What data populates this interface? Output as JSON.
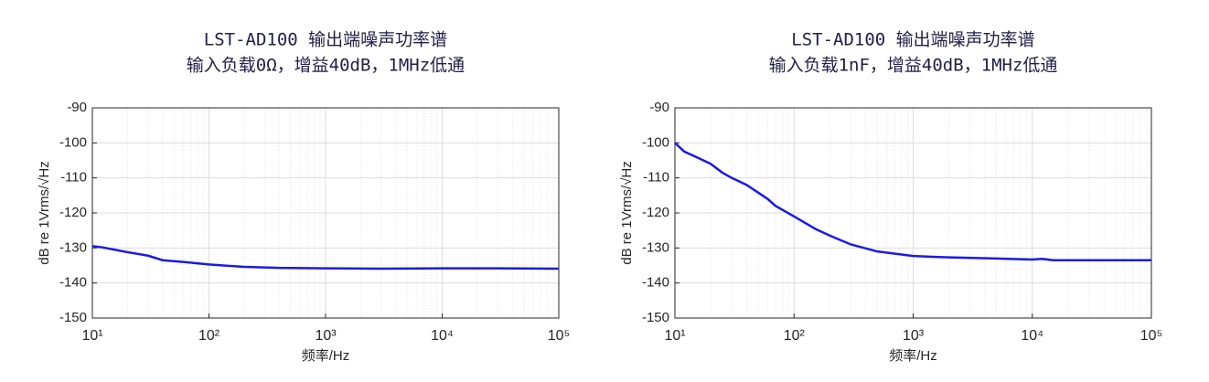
{
  "chart_data": [
    {
      "type": "line",
      "title": "LST-AD100 输出端噪声功率谱",
      "subtitle": "输入负载0Ω，增益40dB，1MHz低通",
      "xlabel": "频率/Hz",
      "ylabel": "dB re 1Vrms/√Hz",
      "xscale": "log",
      "grid": true,
      "minor_grid": true,
      "color": "#1a1ae6",
      "x": [
        10,
        12,
        15,
        20,
        30,
        40,
        60,
        100,
        200,
        400,
        1000,
        3000,
        10000,
        30000,
        100000
      ],
      "values": [
        -129.5,
        -129.8,
        -130.4,
        -131.2,
        -132.2,
        -133.5,
        -134,
        -134.7,
        -135.4,
        -135.7,
        -135.8,
        -135.9,
        -135.8,
        -135.8,
        -135.9
      ],
      "xlim": [
        10,
        100000
      ],
      "ylim": [
        -150,
        -90
      ],
      "xticks": [
        {
          "value": 10,
          "label": "10¹"
        },
        {
          "value": 100,
          "label": "10²"
        },
        {
          "value": 1000,
          "label": "10³"
        },
        {
          "value": 10000,
          "label": "10⁴"
        },
        {
          "value": 100000,
          "label": "10⁵"
        }
      ],
      "yticks": [
        -90,
        -100,
        -110,
        -120,
        -130,
        -140,
        -150
      ]
    },
    {
      "type": "line",
      "title": "LST-AD100 输出端噪声功率谱",
      "subtitle": "输入负载1nF，增益40dB，1MHz低通",
      "xlabel": "频率/Hz",
      "ylabel": "dB re 1Vrms/√Hz",
      "xscale": "log",
      "grid": true,
      "minor_grid": true,
      "color": "#1a1ae6",
      "x": [
        10,
        12,
        15,
        20,
        25,
        30,
        40,
        60,
        70,
        100,
        150,
        200,
        300,
        500,
        1000,
        2000,
        5000,
        10000,
        12000,
        15000,
        100000
      ],
      "values": [
        -100,
        -102.5,
        -104,
        -106,
        -108.5,
        -110,
        -112,
        -116,
        -118,
        -121,
        -124.5,
        -126.5,
        -129,
        -131,
        -132.3,
        -132.7,
        -133,
        -133.3,
        -133.1,
        -133.5,
        -133.5
      ],
      "xlim": [
        10,
        100000
      ],
      "ylim": [
        -150,
        -90
      ],
      "xticks": [
        {
          "value": 10,
          "label": "10¹"
        },
        {
          "value": 100,
          "label": "10²"
        },
        {
          "value": 1000,
          "label": "10³"
        },
        {
          "value": 10000,
          "label": "10⁴"
        },
        {
          "value": 100000,
          "label": "10⁵"
        }
      ],
      "yticks": [
        -90,
        -100,
        -110,
        -120,
        -130,
        -140,
        -150
      ]
    }
  ]
}
